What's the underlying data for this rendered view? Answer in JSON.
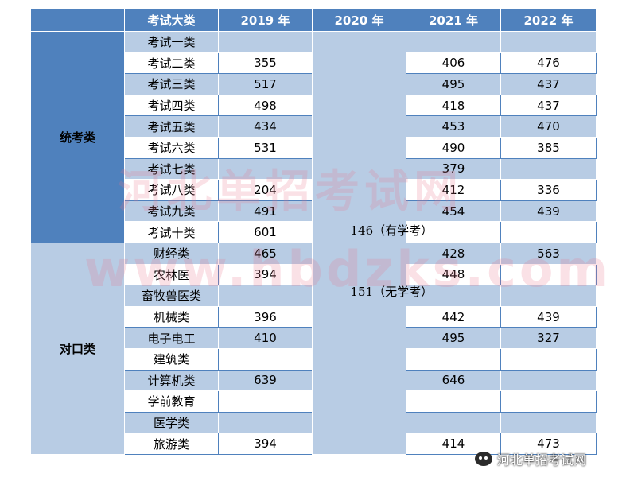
{
  "table": {
    "headers": [
      "考试大类",
      "2019 年",
      "2020 年",
      "2021 年",
      "2022 年"
    ],
    "groups": [
      "统考类",
      "对口类"
    ],
    "y2020": [
      "146（有学考）",
      "151（无学考）"
    ],
    "rows": [
      {
        "category": "考试一类",
        "y2019": "",
        "y2021": "",
        "y2022": ""
      },
      {
        "category": "考试二类",
        "y2019": "355",
        "y2021": "406",
        "y2022": "476"
      },
      {
        "category": "考试三类",
        "y2019": "517",
        "y2021": "495",
        "y2022": "437"
      },
      {
        "category": "考试四类",
        "y2019": "498",
        "y2021": "418",
        "y2022": "437"
      },
      {
        "category": "考试五类",
        "y2019": "434",
        "y2021": "453",
        "y2022": "470"
      },
      {
        "category": "考试六类",
        "y2019": "531",
        "y2021": "490",
        "y2022": "385"
      },
      {
        "category": "考试七类",
        "y2019": "",
        "y2021": "379",
        "y2022": ""
      },
      {
        "category": "考试八类",
        "y2019": "204",
        "y2021": "412",
        "y2022": "336"
      },
      {
        "category": "考试九类",
        "y2019": "491",
        "y2021": "454",
        "y2022": "439"
      },
      {
        "category": "考试十类",
        "y2019": "601",
        "y2021": "",
        "y2022": ""
      },
      {
        "category": "财经类",
        "y2019": "465",
        "y2021": "428",
        "y2022": "563"
      },
      {
        "category": "农林医",
        "y2019": "394",
        "y2021": "448",
        "y2022": ""
      },
      {
        "category": "畜牧兽医类",
        "y2019": "",
        "y2021": "",
        "y2022": ""
      },
      {
        "category": "机械类",
        "y2019": "396",
        "y2021": "442",
        "y2022": "439"
      },
      {
        "category": "电子电工",
        "y2019": "410",
        "y2021": "495",
        "y2022": "327"
      },
      {
        "category": "建筑类",
        "y2019": "",
        "y2021": "",
        "y2022": ""
      },
      {
        "category": "计算机类",
        "y2019": "639",
        "y2021": "646",
        "y2022": ""
      },
      {
        "category": "学前教育",
        "y2019": "",
        "y2021": "",
        "y2022": ""
      },
      {
        "category": "医学类",
        "y2019": "",
        "y2021": "",
        "y2022": ""
      },
      {
        "category": "旅游类",
        "y2019": "394",
        "y2021": "414",
        "y2022": "473"
      }
    ]
  },
  "watermark": {
    "line1": "河北单招考试网",
    "line2": "www.hbdzks.com"
  },
  "wechat_label": "河北单招考试网",
  "colors": {
    "header": "#4f81bd",
    "band": "#b8cce4",
    "white": "#ffffff"
  }
}
